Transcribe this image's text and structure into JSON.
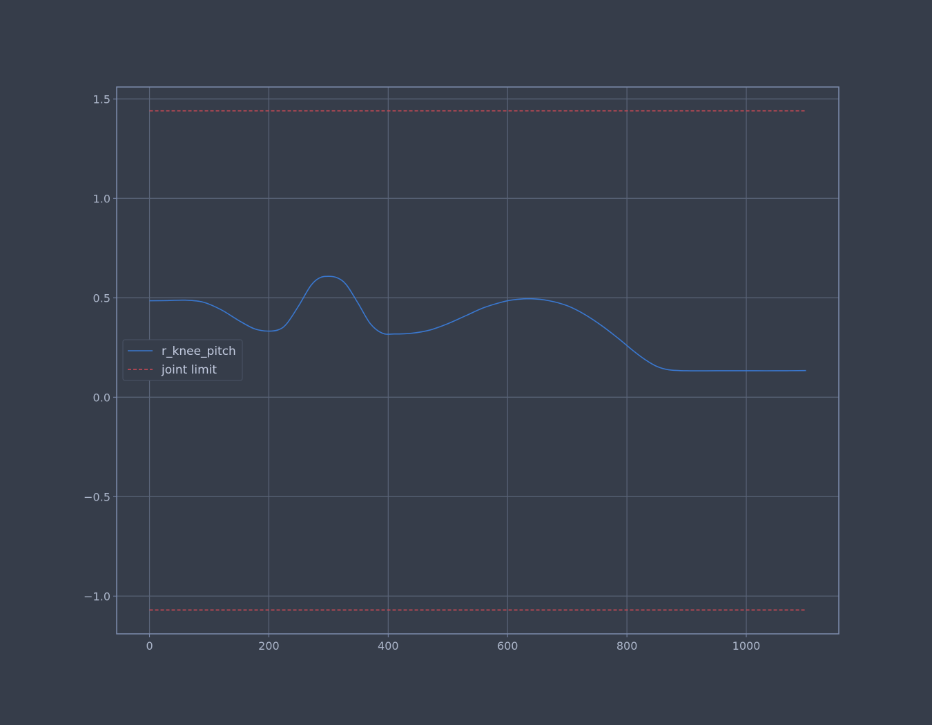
{
  "colors": {
    "background": "#363d4a",
    "grid": "#5a6478",
    "frame": "#7d8cad",
    "tick_text": "#aab4c8",
    "series_line": "#3a78d0",
    "limit_line": "#d04a55"
  },
  "chart_data": {
    "type": "line",
    "title": "",
    "xlabel": "",
    "ylabel": "",
    "xlim": [
      -55,
      1155
    ],
    "ylim": [
      -1.19,
      1.56
    ],
    "x_ticks": [
      0,
      200,
      400,
      600,
      800,
      1000
    ],
    "y_ticks": [
      -1.0,
      -0.5,
      0.0,
      0.5,
      1.0,
      1.5
    ],
    "x_tick_labels": [
      "0",
      "200",
      "400",
      "600",
      "800",
      "1000"
    ],
    "y_tick_labels": [
      "−1.0",
      "−0.5",
      "0.0",
      "0.5",
      "1.0",
      "1.5"
    ],
    "grid": true,
    "legend": {
      "placement": "center-left",
      "entries": [
        {
          "label": "r_knee_pitch",
          "style": "solid",
          "color": "#3a78d0"
        },
        {
          "label": "joint limit",
          "style": "dashed",
          "color": "#d04a55"
        }
      ]
    },
    "series": [
      {
        "name": "r_knee_pitch",
        "style": "solid",
        "color": "#3a78d0",
        "points": [
          [
            0,
            0.485
          ],
          [
            30,
            0.486
          ],
          [
            60,
            0.488
          ],
          [
            90,
            0.478
          ],
          [
            120,
            0.44
          ],
          [
            150,
            0.385
          ],
          [
            175,
            0.345
          ],
          [
            195,
            0.333
          ],
          [
            215,
            0.338
          ],
          [
            230,
            0.37
          ],
          [
            250,
            0.46
          ],
          [
            270,
            0.56
          ],
          [
            285,
            0.6
          ],
          [
            300,
            0.608
          ],
          [
            315,
            0.6
          ],
          [
            330,
            0.565
          ],
          [
            350,
            0.47
          ],
          [
            370,
            0.37
          ],
          [
            390,
            0.322
          ],
          [
            410,
            0.318
          ],
          [
            440,
            0.322
          ],
          [
            470,
            0.338
          ],
          [
            500,
            0.37
          ],
          [
            530,
            0.41
          ],
          [
            560,
            0.45
          ],
          [
            590,
            0.478
          ],
          [
            610,
            0.49
          ],
          [
            640,
            0.495
          ],
          [
            670,
            0.485
          ],
          [
            700,
            0.46
          ],
          [
            730,
            0.415
          ],
          [
            760,
            0.355
          ],
          [
            790,
            0.285
          ],
          [
            810,
            0.235
          ],
          [
            830,
            0.19
          ],
          [
            850,
            0.155
          ],
          [
            870,
            0.138
          ],
          [
            900,
            0.133
          ],
          [
            950,
            0.133
          ],
          [
            1000,
            0.133
          ],
          [
            1050,
            0.133
          ],
          [
            1100,
            0.134
          ]
        ]
      },
      {
        "name": "joint limit",
        "style": "dashed",
        "color": "#d04a55",
        "points": [
          [
            0,
            1.44
          ],
          [
            1100,
            1.44
          ]
        ]
      },
      {
        "name": "joint limit",
        "style": "dashed",
        "color": "#d04a55",
        "points": [
          [
            0,
            -1.07
          ],
          [
            1100,
            -1.07
          ]
        ]
      }
    ]
  }
}
